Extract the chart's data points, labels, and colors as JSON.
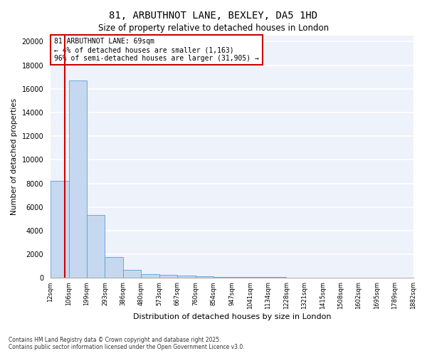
{
  "title": "81, ARBUTHNOT LANE, BEXLEY, DA5 1HD",
  "subtitle": "Size of property relative to detached houses in London",
  "xlabel": "Distribution of detached houses by size in London",
  "ylabel": "Number of detached properties",
  "bar_color": "#c5d8f0",
  "bar_edge_color": "#5a9fd4",
  "background_color": "#eef2fa",
  "grid_color": "#ffffff",
  "annotation_line1": "81 ARBUTHNOT LANE: 69sqm",
  "annotation_line2": "← 4% of detached houses are smaller (1,163)",
  "annotation_line3": "96% of semi-detached houses are larger (31,905) →",
  "red_line_x": 0.27,
  "bin_labels": [
    "12sqm",
    "106sqm",
    "199sqm",
    "293sqm",
    "386sqm",
    "480sqm",
    "573sqm",
    "667sqm",
    "760sqm",
    "854sqm",
    "947sqm",
    "1041sqm",
    "1134sqm",
    "1228sqm",
    "1321sqm",
    "1415sqm",
    "1508sqm",
    "1602sqm",
    "1695sqm",
    "1789sqm",
    "1882sqm"
  ],
  "bar_heights": [
    8200,
    16700,
    5300,
    1800,
    700,
    350,
    250,
    200,
    150,
    100,
    80,
    70,
    60,
    50,
    40,
    35,
    30,
    25,
    20,
    15
  ],
  "ylim": [
    0,
    20500
  ],
  "yticks": [
    0,
    2000,
    4000,
    6000,
    8000,
    10000,
    12000,
    14000,
    16000,
    18000,
    20000
  ],
  "red_line_color": "#cc0000",
  "footer_line1": "Contains HM Land Registry data © Crown copyright and database right 2025.",
  "footer_line2": "Contains public sector information licensed under the Open Government Licence v3.0."
}
